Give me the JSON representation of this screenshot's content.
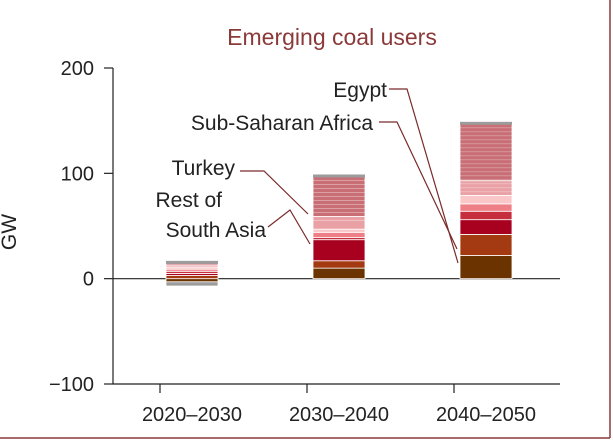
{
  "chart_data": {
    "type": "bar",
    "stacked": true,
    "title": "Emerging coal users",
    "xlabel": "",
    "ylabel": "GW",
    "ylim": [
      -100,
      200
    ],
    "yticks": [
      "−100",
      "0",
      "100",
      "200"
    ],
    "ytick_values": [
      -100,
      0,
      100,
      200
    ],
    "categories": [
      "2020–2030",
      "2030–2040",
      "2040–2050"
    ],
    "grid": false,
    "legend": "none",
    "zero_line": true,
    "series": [
      {
        "values": [
          -3,
          10,
          22
        ],
        "color": "#6a3300"
      },
      {
        "values": [
          3,
          7,
          20
        ],
        "color": "#a33a12"
      },
      {
        "values": [
          2,
          20,
          14
        ],
        "color": "#a8001f"
      },
      {
        "values": [
          2,
          2,
          8
        ],
        "color": "#c72e3d"
      },
      {
        "values": [
          2,
          5,
          7
        ],
        "color": "#ee7f86"
      },
      {
        "values": [
          2,
          3,
          8
        ],
        "color": "#f9c7c7"
      },
      {
        "values": [
          2,
          12,
          14
        ],
        "color": "#e9a1a6"
      },
      {
        "values": [
          2,
          38,
          54
        ],
        "color": "#c86e74"
      },
      {
        "values": [
          -4,
          0,
          0
        ],
        "color": "#9c9c9c"
      }
    ],
    "annotations": [
      {
        "text": "Egypt",
        "category": "2040–2050",
        "value": 18
      },
      {
        "text": "Sub-Saharan Africa",
        "category": "2040–2050",
        "value": 30
      },
      {
        "text": "Turkey",
        "category": "2030–2040",
        "value": 55
      },
      {
        "text": "Rest of",
        "category": "2030–2040",
        "value": 30
      },
      {
        "text": "South Asia",
        "category": "2030–2040",
        "value": 30
      }
    ]
  },
  "colors": {
    "title": "#8b3a3a",
    "frame": "#8b3a3a",
    "axis": "#222222",
    "leader": "#7a2a2a"
  }
}
